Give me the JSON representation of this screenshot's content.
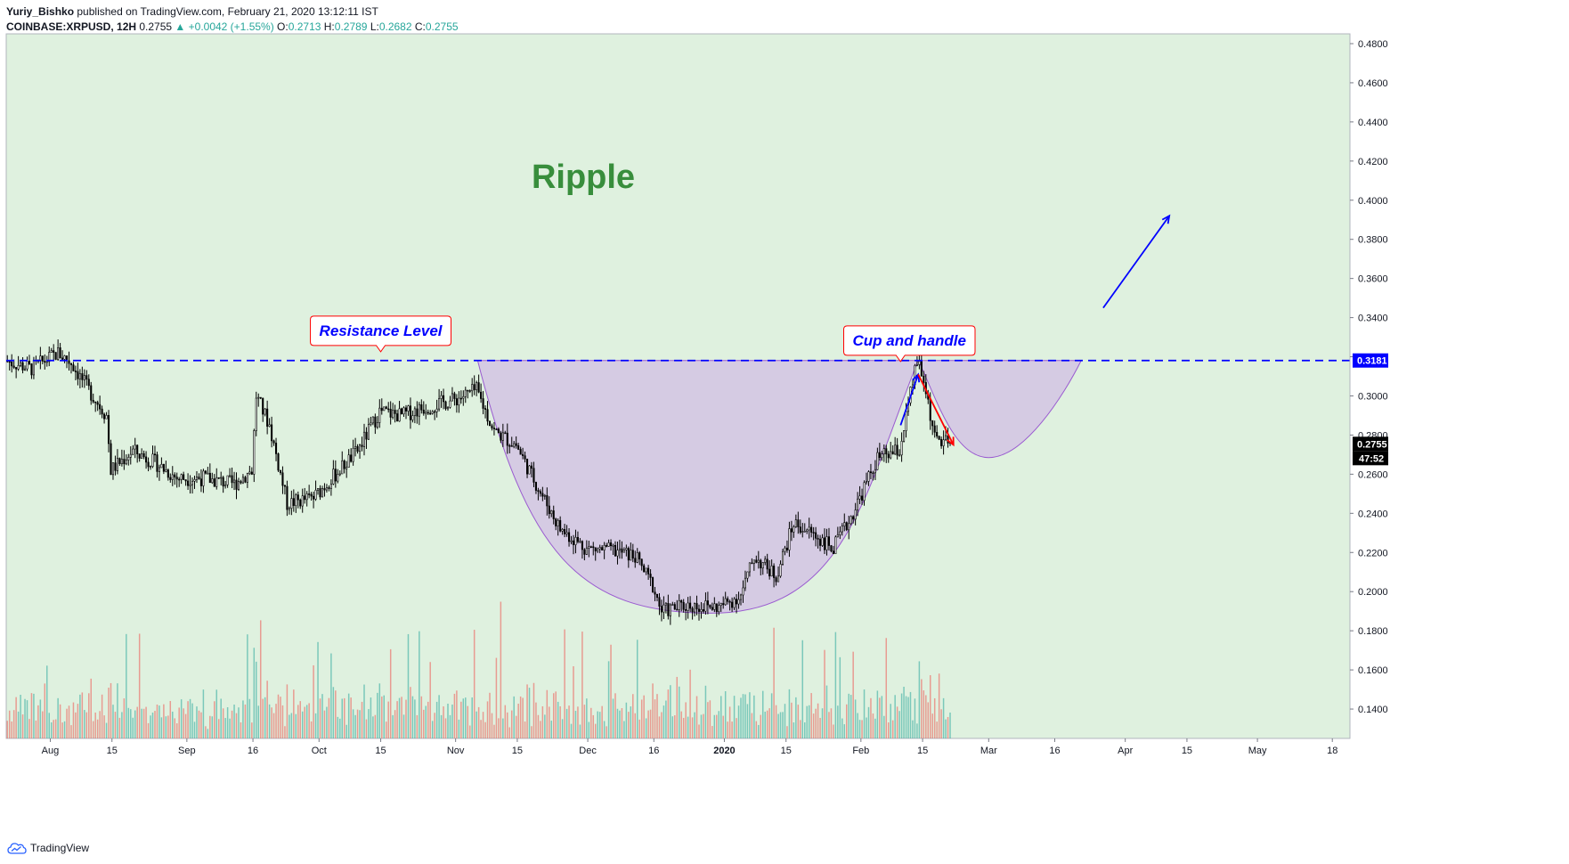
{
  "header": {
    "author": "Yuriy_Bishko",
    "published": "published on TradingView.com, February 21, 2020 13:12:11 IST",
    "symbol": "COINBASE:XRPUSD, 12H",
    "last": "0.2755",
    "change": "▲ +0.0042 (+1.55%)",
    "o_label": "O:",
    "o": "0.2713",
    "h_label": "H:",
    "h": "0.2789",
    "l_label": "L:",
    "l": "0.2682",
    "c_label": "C:",
    "c": "0.2755"
  },
  "footer": {
    "brand": "TradingView"
  },
  "chart_data": {
    "type": "candlestick",
    "title": "Ripple",
    "ylim": [
      0.125,
      0.485
    ],
    "y_ticks": [
      "0.1400",
      "0.1600",
      "0.1800",
      "0.2000",
      "0.2200",
      "0.2400",
      "0.2600",
      "0.2800",
      "0.3000",
      "0.3200",
      "0.3400",
      "0.3600",
      "0.3800",
      "0.4000",
      "0.4200",
      "0.4400",
      "0.4600",
      "0.4800"
    ],
    "x_range": [
      "2019-07-22",
      "2020-05-22"
    ],
    "x_ticks": [
      {
        "label": "Aug",
        "date": "2019-08-01"
      },
      {
        "label": "15",
        "date": "2019-08-15"
      },
      {
        "label": "Sep",
        "date": "2019-09-01"
      },
      {
        "label": "16",
        "date": "2019-09-16"
      },
      {
        "label": "Oct",
        "date": "2019-10-01"
      },
      {
        "label": "15",
        "date": "2019-10-15"
      },
      {
        "label": "Nov",
        "date": "2019-11-01"
      },
      {
        "label": "15",
        "date": "2019-11-15"
      },
      {
        "label": "Dec",
        "date": "2019-12-01"
      },
      {
        "label": "16",
        "date": "2019-12-16"
      },
      {
        "label": "2020",
        "date": "2020-01-01"
      },
      {
        "label": "15",
        "date": "2020-01-15"
      },
      {
        "label": "Feb",
        "date": "2020-02-01"
      },
      {
        "label": "15",
        "date": "2020-02-15"
      },
      {
        "label": "Mar",
        "date": "2020-03-01"
      },
      {
        "label": "16",
        "date": "2020-03-16"
      },
      {
        "label": "Apr",
        "date": "2020-04-01"
      },
      {
        "label": "15",
        "date": "2020-04-15"
      },
      {
        "label": "May",
        "date": "2020-05-01"
      },
      {
        "label": "18",
        "date": "2020-05-18"
      }
    ],
    "price_path": [
      [
        "2019-07-22",
        0.318
      ],
      [
        "2019-07-28",
        0.314
      ],
      [
        "2019-08-03",
        0.322
      ],
      [
        "2019-08-06",
        0.317
      ],
      [
        "2019-08-10",
        0.303
      ],
      [
        "2019-08-14",
        0.29
      ],
      [
        "2019-08-15",
        0.262
      ],
      [
        "2019-08-20",
        0.272
      ],
      [
        "2019-08-25",
        0.266
      ],
      [
        "2019-08-30",
        0.258
      ],
      [
        "2019-09-05",
        0.258
      ],
      [
        "2019-09-12",
        0.255
      ],
      [
        "2019-09-16",
        0.262
      ],
      [
        "2019-09-17",
        0.3
      ],
      [
        "2019-09-20",
        0.285
      ],
      [
        "2019-09-24",
        0.245
      ],
      [
        "2019-09-30",
        0.248
      ],
      [
        "2019-10-05",
        0.26
      ],
      [
        "2019-10-10",
        0.272
      ],
      [
        "2019-10-15",
        0.292
      ],
      [
        "2019-10-20",
        0.29
      ],
      [
        "2019-10-25",
        0.294
      ],
      [
        "2019-11-01",
        0.298
      ],
      [
        "2019-11-06",
        0.303
      ],
      [
        "2019-11-10",
        0.282
      ],
      [
        "2019-11-15",
        0.275
      ],
      [
        "2019-11-20",
        0.253
      ],
      [
        "2019-11-25",
        0.232
      ],
      [
        "2019-12-01",
        0.222
      ],
      [
        "2019-12-07",
        0.221
      ],
      [
        "2019-12-12",
        0.218
      ],
      [
        "2019-12-16",
        0.203
      ],
      [
        "2019-12-18",
        0.19
      ],
      [
        "2019-12-24",
        0.193
      ],
      [
        "2019-12-31",
        0.192
      ],
      [
        "2020-01-05",
        0.198
      ],
      [
        "2020-01-08",
        0.218
      ],
      [
        "2020-01-13",
        0.208
      ],
      [
        "2020-01-17",
        0.235
      ],
      [
        "2020-01-21",
        0.23
      ],
      [
        "2020-01-26",
        0.222
      ],
      [
        "2020-01-30",
        0.238
      ],
      [
        "2020-02-05",
        0.268
      ],
      [
        "2020-02-10",
        0.272
      ],
      [
        "2020-02-14",
        0.318
      ],
      [
        "2020-02-16",
        0.303
      ],
      [
        "2020-02-18",
        0.278
      ],
      [
        "2020-02-21",
        0.2755
      ]
    ],
    "resistance_level": 0.3181,
    "current_price": 0.2755,
    "countdown": "47:52",
    "annotations": [
      {
        "text": "Resistance Level",
        "date": "2019-10-15",
        "y": 0.3335
      },
      {
        "text": "Cup and handle",
        "date": "2020-02-12",
        "y": 0.3285
      }
    ],
    "cup_and_handle": {
      "rim_left": [
        "2019-11-06",
        0.3181
      ],
      "cup_bottom": [
        "2019-12-29",
        0.189
      ],
      "rim_right": [
        "2020-02-14",
        0.3181
      ],
      "handle_bottom": [
        "2020-03-01",
        0.2685
      ],
      "handle_end": [
        "2020-03-22",
        0.3181
      ]
    },
    "arrows": [
      {
        "color": "#0000ff",
        "from": [
          "2020-02-10",
          0.285
        ],
        "to": [
          "2020-02-14",
          0.311
        ]
      },
      {
        "color": "#ff0000",
        "from": [
          "2020-02-14",
          0.311
        ],
        "to": [
          "2020-02-22",
          0.275
        ]
      },
      {
        "color": "#0000ff",
        "from": [
          "2020-03-27",
          0.345
        ],
        "to": [
          "2020-04-11",
          0.392
        ]
      }
    ],
    "colors": {
      "background": "#dff1df",
      "up": "#26a69a",
      "down": "#ef5350",
      "candle": "#000000",
      "resistance": "#0000ff",
      "cup_fill": "#d4c6e3",
      "cup_stroke": "#9a5bd0",
      "title": "#388e3c",
      "label_text": "#0000ff",
      "label_border": "#ff0000"
    }
  }
}
